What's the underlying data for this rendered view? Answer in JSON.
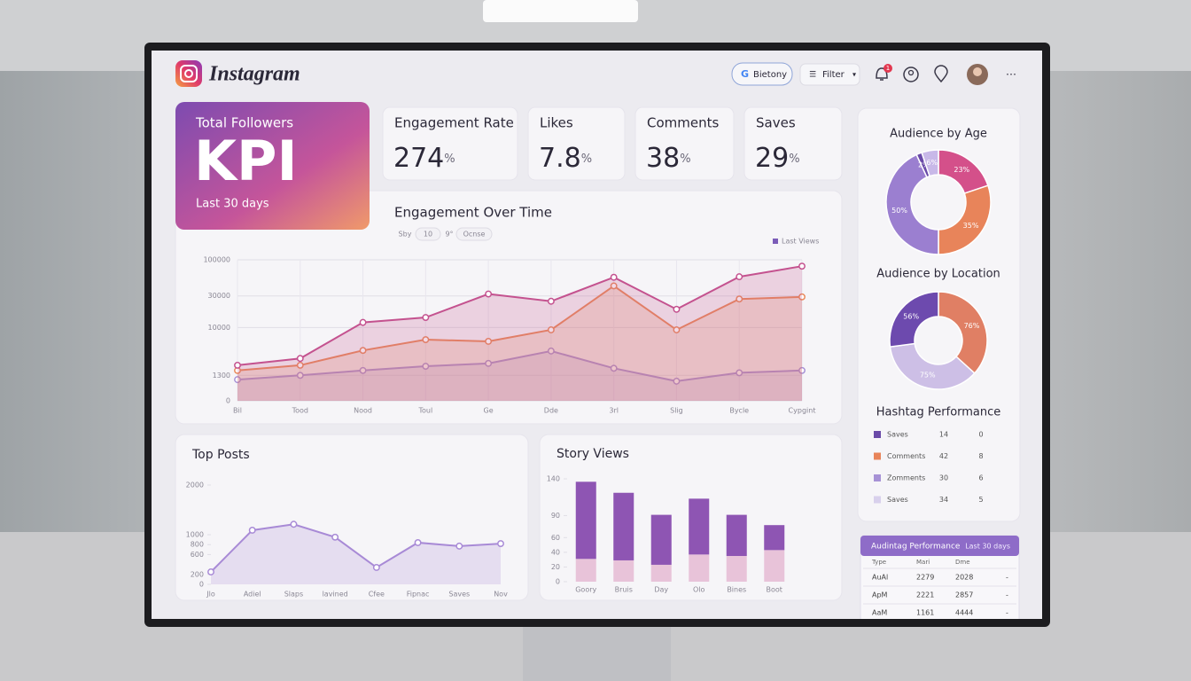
{
  "header": {
    "brand": "Instagram",
    "search": "Bietony",
    "filter": "Filter",
    "notifications": "1"
  },
  "kpi": {
    "title": "Total Followers",
    "value": "KPI",
    "period": "Last 30 days"
  },
  "metrics": [
    {
      "label": "Engagement Rate",
      "value": 274,
      "unit": "%"
    },
    {
      "label": "Likes",
      "value": 7.8,
      "unit": "%"
    },
    {
      "label": "Comments",
      "value": 38,
      "unit": "%"
    },
    {
      "label": "Saves",
      "value": 29,
      "unit": "%"
    }
  ],
  "chart_data": [
    {
      "type": "line",
      "title": "Engagement Over Time",
      "controls": [
        "Sby",
        "10",
        "9°",
        "Ocnse"
      ],
      "categories": [
        "Bil",
        "Tood",
        "Nood",
        "Toul",
        "Ge",
        "Dde",
        "3rl",
        "Slig",
        "Bycle",
        "Cypgint"
      ],
      "series": [
        {
          "name": "Last Views",
          "color": "#c4528f",
          "values": [
            2200,
            3000,
            12000,
            14300,
            32000,
            25000,
            56000,
            19000,
            57000,
            81000
          ]
        },
        {
          "color": "#e98b5d",
          "values": [
            1700,
            2200,
            4200,
            6400,
            6000,
            9200,
            42000,
            9200,
            27000,
            29000
          ]
        },
        {
          "color": "#a792d6",
          "values": [
            1000,
            1300,
            1700,
            2100,
            2400,
            4100,
            1900,
            900,
            1500,
            1700
          ]
        }
      ],
      "ylim": [
        0,
        100000
      ],
      "yticks": [
        0,
        1300,
        10000,
        30000,
        100000
      ],
      "yscale": "symlog",
      "linthresh": 1000,
      "grid": true
    },
    {
      "type": "line",
      "title": "Top Posts",
      "categories": [
        "Jlo",
        "Adiel",
        "Slaps",
        "lavined",
        "Cfee",
        "Fipnac",
        "Saves",
        "Nov"
      ],
      "series": [
        {
          "color": "#a88ad6",
          "values": [
            250,
            1090,
            1210,
            950,
            340,
            840,
            770,
            820
          ]
        }
      ],
      "ylim": [
        0,
        2000
      ],
      "yticks": [
        0,
        200,
        600,
        800,
        1000,
        2000
      ],
      "grid": false
    },
    {
      "type": "bar",
      "stacked": true,
      "title": "Story Views",
      "categories": [
        "Goory",
        "Bruis",
        "Day",
        "Olo",
        "Bines",
        "Boot"
      ],
      "series": [
        {
          "color": "#e8c3d9",
          "values": [
            31,
            29,
            23,
            37,
            35,
            43
          ]
        },
        {
          "color": "#8e55b3",
          "values": [
            105,
            92,
            68,
            76,
            56,
            34
          ]
        }
      ],
      "ylim": [
        0,
        140
      ],
      "yticks": [
        0,
        20,
        40,
        60,
        90,
        140
      ]
    },
    {
      "type": "pie",
      "title": "Audience by Age",
      "values": [
        23,
        35,
        50,
        2,
        6
      ],
      "value_labels": [
        "23%",
        "35%",
        "50%",
        "2%",
        "6%"
      ],
      "colors": [
        "#d4508a",
        "#e8845a",
        "#9b7fd0",
        "#6a4aa8",
        "#c8b8e8"
      ]
    },
    {
      "type": "pie",
      "title": "Audience by Location",
      "values": [
        76,
        75,
        56
      ],
      "value_labels": [
        "76%",
        "75%",
        "56%"
      ],
      "colors": [
        "#e07f64",
        "#cdbfe6",
        "#6d4aae"
      ]
    }
  ],
  "hashtag": {
    "title": "Hashtag Performance",
    "rows": [
      {
        "name": "Saves",
        "color": "#6a4aa8",
        "values": [
          14,
          0
        ]
      },
      {
        "name": "Comments",
        "color": "#e8845a",
        "values": [
          42,
          8
        ]
      },
      {
        "name": "Zomments",
        "color": "#a792d6",
        "values": [
          30,
          6
        ]
      },
      {
        "name": "Saves",
        "color": "#d8d0ec",
        "values": [
          34,
          5
        ]
      }
    ]
  },
  "table": {
    "title": "Audintag Performance",
    "period": "Last 30 days",
    "columns": [
      "Type",
      "Mari",
      "Dme"
    ],
    "rows": [
      [
        "AuAl",
        "2279",
        "2028",
        "-"
      ],
      [
        "ApM",
        "2221",
        "2857",
        "-"
      ],
      [
        "AaM",
        "1161",
        "4444",
        "-"
      ]
    ]
  }
}
